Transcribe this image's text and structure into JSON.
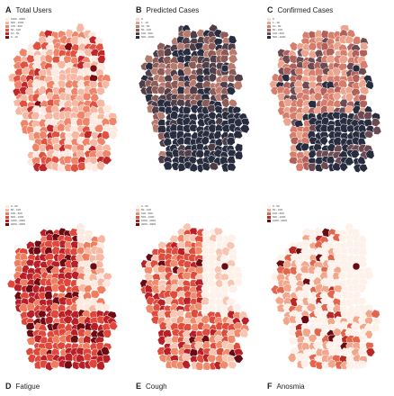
{
  "panels": [
    {
      "letter": "A",
      "title": "Total Users",
      "legend": [
        "1000 - 5000",
        "500 - 1000",
        "100 - 500",
        "50 - 100",
        "10 - 50",
        "0 - 10"
      ],
      "colors": [
        "#fce9df",
        "#f7b8a3",
        "#ef8469",
        "#e0513f",
        "#c0272a",
        "#7d0d12"
      ]
    },
    {
      "letter": "B",
      "title": "Predicted Cases",
      "legend": [
        "0",
        "1 - 10",
        "10 - 50",
        "50 - 100",
        "100 - 500",
        "500 - 1000"
      ],
      "colors": [
        "#f3d8cc",
        "#dca494",
        "#b97a6e",
        "#8c5b56",
        "#4f3d48",
        "#272c3e"
      ]
    },
    {
      "letter": "C",
      "title": "Confirmed Cases",
      "legend": [
        "0",
        "1 - 10",
        "10 - 50",
        "50 - 100",
        "100 - 500",
        "500 - 1000"
      ],
      "colors": [
        "#f6dccf",
        "#eba58f",
        "#d77d6b",
        "#b2615a",
        "#6d4a52",
        "#272c3e"
      ]
    },
    {
      "letter": "D",
      "title": "Fatigue",
      "legend": [
        "0 - 50",
        "50 - 100",
        "100 - 500",
        "500 - 1000",
        "1000 - 2000",
        "2000 - 3000"
      ],
      "colors": [
        "#fce9df",
        "#f7b8a3",
        "#ef7e5f",
        "#e0473a",
        "#b91f26",
        "#6e0b12"
      ]
    },
    {
      "letter": "E",
      "title": "Cough",
      "legend": [
        "0 - 50",
        "50 - 100",
        "100 - 500",
        "500 - 1000",
        "1000 - 2000",
        "2000 - 3000"
      ],
      "colors": [
        "#fdf1ea",
        "#f7c6b2",
        "#ef8a6b",
        "#df4c3b",
        "#b81f26",
        "#6a0a12"
      ]
    },
    {
      "letter": "F",
      "title": "Anosmia",
      "legend": [
        "0 - 50",
        "50 - 100",
        "100 - 500",
        "500 - 1000",
        "1000 - 2000"
      ],
      "colors": [
        "#fdf1ea",
        "#f2a68c",
        "#e2654c",
        "#b82a25",
        "#6a0a12"
      ]
    }
  ],
  "colors": {
    "border": "#ffffff",
    "text": "#222222"
  }
}
